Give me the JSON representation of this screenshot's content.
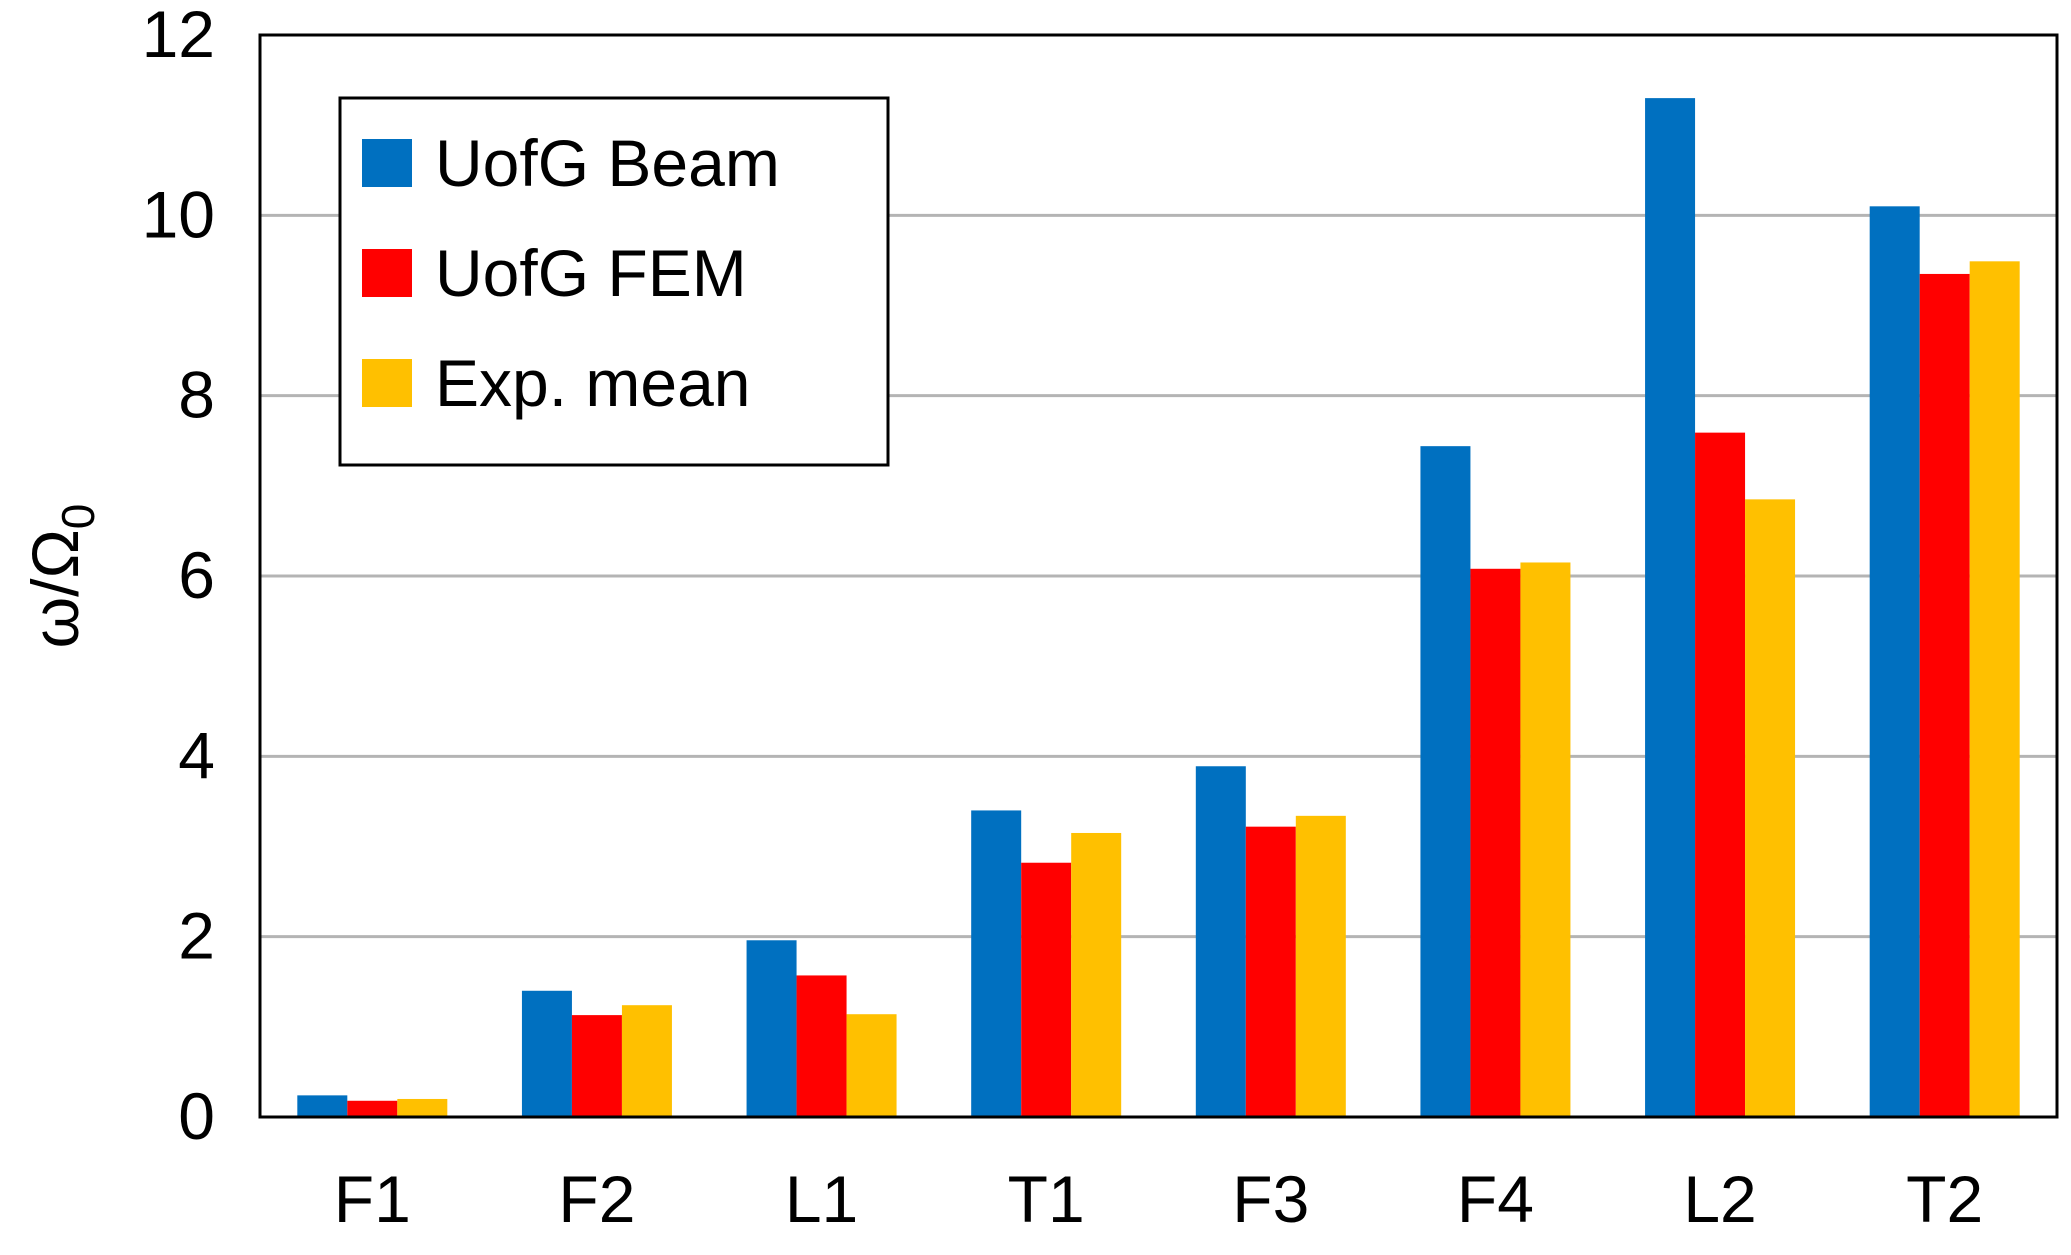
{
  "chart_data": {
    "type": "bar",
    "title": "",
    "xlabel": "",
    "ylabel": "ω/Ω",
    "ylabel_subscript": "0",
    "categories": [
      "F1",
      "F2",
      "L1",
      "T1",
      "F3",
      "F4",
      "L2",
      "T2"
    ],
    "ylim": [
      0,
      12
    ],
    "yticks": [
      0,
      2,
      4,
      6,
      8,
      10,
      12
    ],
    "ytick_labels": [
      "0",
      "2",
      "4",
      "6",
      "8",
      "10",
      "12"
    ],
    "grid": "horizontal",
    "legend_position": "top-left",
    "series": [
      {
        "name": "UofG Beam",
        "color": "#0070c0",
        "values": [
          0.24,
          1.4,
          1.96,
          3.4,
          3.89,
          7.44,
          11.3,
          10.1
        ]
      },
      {
        "name": "UofG FEM",
        "color": "#ff0000",
        "values": [
          0.18,
          1.13,
          1.57,
          2.82,
          3.22,
          6.08,
          7.59,
          9.35
        ]
      },
      {
        "name": "Exp. mean",
        "color": "#ffc000",
        "values": [
          0.2,
          1.24,
          1.14,
          3.15,
          3.34,
          6.15,
          6.85,
          9.49
        ]
      }
    ]
  }
}
